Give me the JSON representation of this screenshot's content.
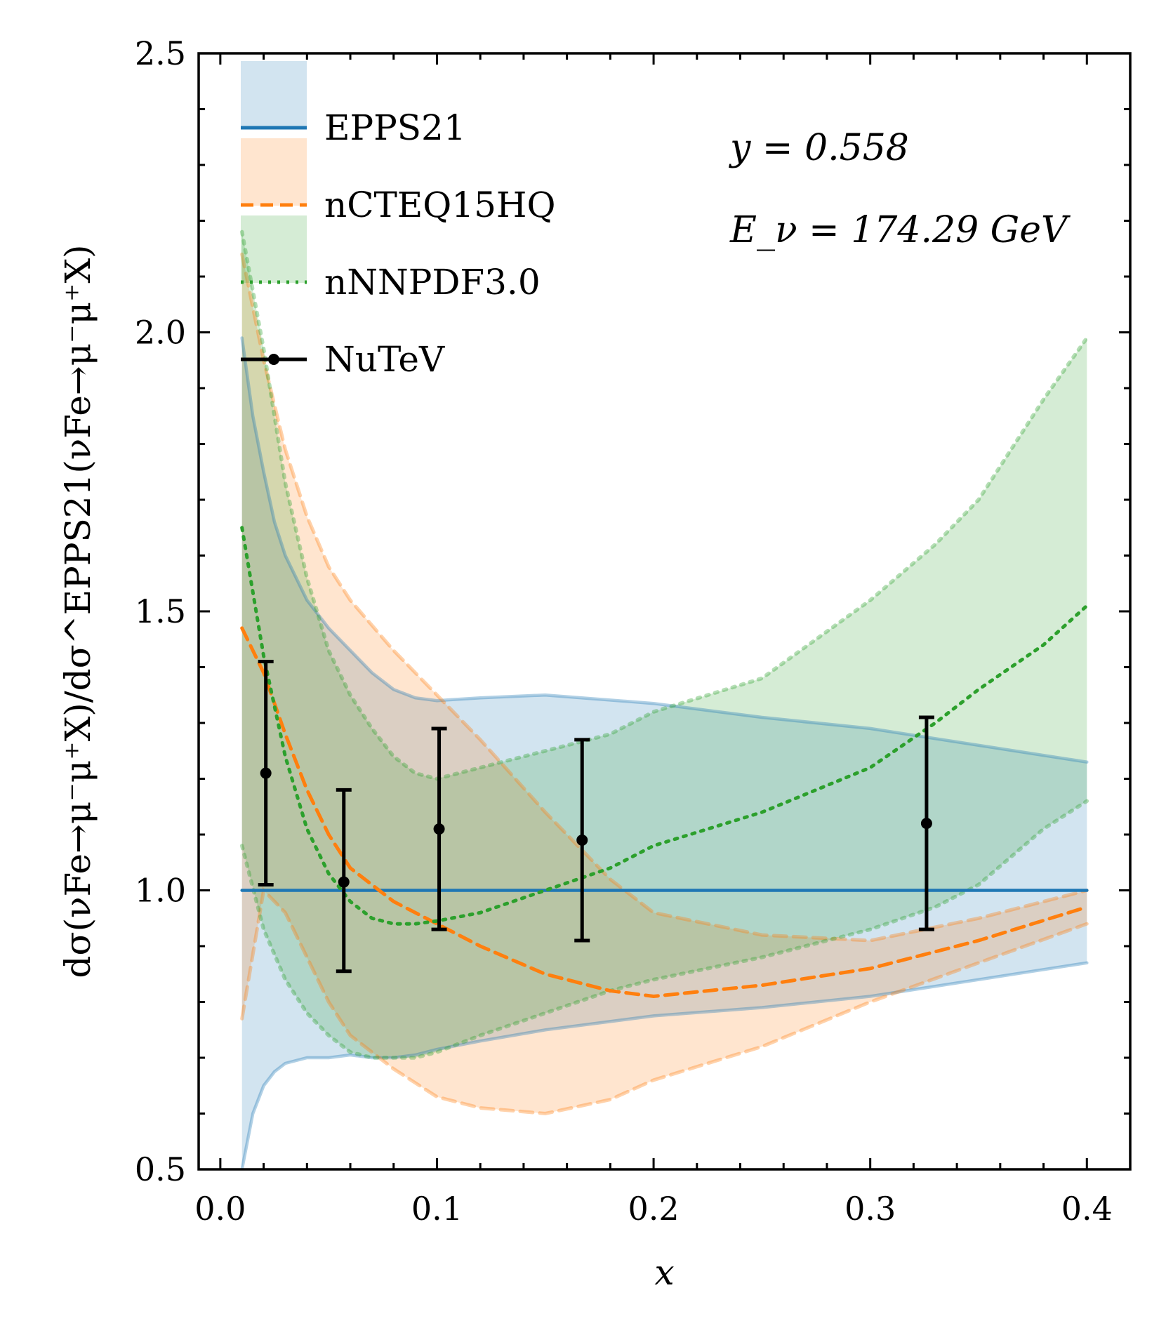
{
  "chart_data": {
    "type": "line",
    "title": "",
    "xlabel": "x",
    "ylabel": "dσ(νFe→μ⁻μ⁺X)/dσ^EPPS21(νFe→μ⁻μ⁺X)",
    "xlim": [
      -0.01,
      0.42
    ],
    "ylim": [
      0.5,
      2.5
    ],
    "xticks": [
      "0.0",
      "0.1",
      "0.2",
      "0.3",
      "0.4"
    ],
    "yticks": [
      "0.5",
      "1.0",
      "1.5",
      "2.0",
      "2.5"
    ],
    "annotations": [
      "y = 0.558",
      "E_ν = 174.29 GeV"
    ],
    "legend_position": "top-left",
    "legend": [
      "EPPS21",
      "nCTEQ15HQ",
      "nNNPDF3.0",
      "NuTeV"
    ],
    "colors": {
      "epps": "#1f77b4",
      "ncteq": "#ff7f0e",
      "nnnpdf": "#2ca02c",
      "nutev": "#000000"
    },
    "series": [
      {
        "name": "EPPS21",
        "x": [
          0.01,
          0.015,
          0.02,
          0.025,
          0.03,
          0.04,
          0.05,
          0.06,
          0.07,
          0.08,
          0.09,
          0.1,
          0.12,
          0.15,
          0.2,
          0.25,
          0.3,
          0.35,
          0.4
        ],
        "center": [
          1,
          1,
          1,
          1,
          1,
          1,
          1,
          1,
          1,
          1,
          1,
          1,
          1,
          1,
          1,
          1,
          1,
          1,
          1
        ],
        "upper": [
          1.99,
          1.85,
          1.75,
          1.66,
          1.6,
          1.52,
          1.47,
          1.43,
          1.39,
          1.36,
          1.345,
          1.34,
          1.345,
          1.35,
          1.335,
          1.31,
          1.29,
          1.26,
          1.23
        ],
        "lower": [
          0.5,
          0.6,
          0.65,
          0.675,
          0.69,
          0.7,
          0.7,
          0.705,
          0.7,
          0.7,
          0.705,
          0.715,
          0.73,
          0.75,
          0.775,
          0.79,
          0.81,
          0.84,
          0.87
        ]
      },
      {
        "name": "nCTEQ15HQ",
        "x": [
          0.01,
          0.02,
          0.03,
          0.04,
          0.05,
          0.06,
          0.08,
          0.1,
          0.12,
          0.15,
          0.18,
          0.2,
          0.25,
          0.3,
          0.35,
          0.4
        ],
        "center": [
          1.47,
          1.39,
          1.28,
          1.18,
          1.1,
          1.04,
          0.98,
          0.94,
          0.9,
          0.85,
          0.82,
          0.81,
          0.83,
          0.86,
          0.91,
          0.97
        ],
        "upper": [
          2.14,
          1.95,
          1.79,
          1.67,
          1.58,
          1.52,
          1.43,
          1.35,
          1.27,
          1.14,
          1.02,
          0.96,
          0.92,
          0.91,
          0.95,
          1.0
        ],
        "lower": [
          0.77,
          1.0,
          0.96,
          0.88,
          0.8,
          0.74,
          0.68,
          0.63,
          0.61,
          0.6,
          0.625,
          0.66,
          0.72,
          0.8,
          0.87,
          0.94
        ]
      },
      {
        "name": "nNNPDF3.0",
        "x": [
          0.01,
          0.02,
          0.03,
          0.04,
          0.05,
          0.06,
          0.07,
          0.08,
          0.09,
          0.1,
          0.12,
          0.15,
          0.18,
          0.2,
          0.25,
          0.3,
          0.33,
          0.35,
          0.38,
          0.4
        ],
        "center": [
          1.65,
          1.42,
          1.24,
          1.11,
          1.03,
          0.98,
          0.95,
          0.94,
          0.94,
          0.945,
          0.96,
          1.0,
          1.04,
          1.08,
          1.14,
          1.22,
          1.3,
          1.36,
          1.44,
          1.51
        ],
        "upper": [
          2.18,
          1.97,
          1.73,
          1.56,
          1.43,
          1.35,
          1.29,
          1.24,
          1.21,
          1.2,
          1.22,
          1.25,
          1.28,
          1.32,
          1.38,
          1.52,
          1.62,
          1.7,
          1.88,
          1.99
        ],
        "lower": [
          1.08,
          0.93,
          0.84,
          0.78,
          0.74,
          0.71,
          0.7,
          0.7,
          0.7,
          0.71,
          0.74,
          0.78,
          0.82,
          0.84,
          0.88,
          0.93,
          0.97,
          1.01,
          1.11,
          1.16
        ]
      }
    ],
    "points": {
      "name": "NuTeV",
      "x": [
        0.021,
        0.057,
        0.101,
        0.167,
        0.326
      ],
      "y": [
        1.21,
        1.015,
        1.11,
        1.09,
        1.12
      ],
      "yerr_low": [
        0.2,
        0.16,
        0.18,
        0.18,
        0.19
      ],
      "yerr_high": [
        0.2,
        0.165,
        0.18,
        0.18,
        0.19
      ]
    }
  }
}
